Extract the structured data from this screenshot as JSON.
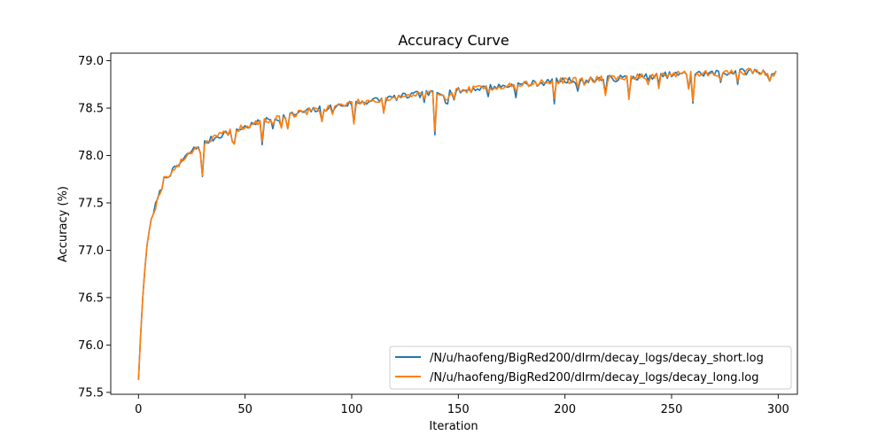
{
  "chart_data": {
    "type": "line",
    "title": "Accuracy Curve",
    "xlabel": "Iteration",
    "ylabel": "Accuracy (%)",
    "xlim": [
      -13,
      309
    ],
    "ylim": [
      75.48,
      79.08
    ],
    "xticks": [
      0,
      50,
      100,
      150,
      200,
      250,
      300
    ],
    "yticks": [
      75.5,
      76.0,
      76.5,
      77.0,
      77.5,
      78.0,
      78.5,
      79.0
    ],
    "ytick_labels": [
      "75.5",
      "76.0",
      "76.5",
      "77.0",
      "77.5",
      "78.0",
      "78.5",
      "79.0"
    ],
    "grid": false,
    "legend_position": "lower-right",
    "colors": {
      "decay_short": "#1f77b4",
      "decay_long": "#ff7f0e"
    },
    "anchors": [
      [
        0,
        75.63
      ],
      [
        1,
        76.1
      ],
      [
        2,
        76.5
      ],
      [
        3,
        76.8
      ],
      [
        4,
        77.05
      ],
      [
        5,
        77.2
      ],
      [
        6,
        77.33
      ],
      [
        7,
        77.4
      ],
      [
        8,
        77.47
      ],
      [
        10,
        77.6
      ],
      [
        12,
        77.75
      ],
      [
        14,
        77.8
      ],
      [
        16,
        77.83
      ],
      [
        20,
        77.93
      ],
      [
        25,
        78.05
      ],
      [
        30,
        78.12
      ],
      [
        35,
        78.18
      ],
      [
        40,
        78.23
      ],
      [
        50,
        78.3
      ],
      [
        60,
        78.37
      ],
      [
        70,
        78.42
      ],
      [
        80,
        78.47
      ],
      [
        90,
        78.51
      ],
      [
        100,
        78.55
      ],
      [
        110,
        78.58
      ],
      [
        120,
        78.61
      ],
      [
        130,
        78.64
      ],
      [
        140,
        78.66
      ],
      [
        150,
        78.68
      ],
      [
        160,
        78.71
      ],
      [
        170,
        78.73
      ],
      [
        180,
        78.75
      ],
      [
        190,
        78.77
      ],
      [
        200,
        78.79
      ],
      [
        210,
        78.8
      ],
      [
        220,
        78.81
      ],
      [
        230,
        78.82
      ],
      [
        240,
        78.84
      ],
      [
        250,
        78.85
      ],
      [
        260,
        78.86
      ],
      [
        270,
        78.87
      ],
      [
        280,
        78.88
      ],
      [
        290,
        78.89
      ],
      [
        299,
        78.86
      ]
    ],
    "dips": [
      [
        29,
        -0.05
      ],
      [
        30,
        -0.36
      ],
      [
        44,
        -0.14
      ],
      [
        45,
        -0.12
      ],
      [
        58,
        -0.22
      ],
      [
        63,
        -0.08
      ],
      [
        67,
        -0.12
      ],
      [
        70,
        -0.14
      ],
      [
        86,
        -0.15
      ],
      [
        91,
        -0.08
      ],
      [
        101,
        -0.22
      ],
      [
        115,
        -0.14
      ],
      [
        134,
        -0.07
      ],
      [
        139,
        -0.45
      ],
      [
        144,
        -0.08
      ],
      [
        145,
        -0.1
      ],
      [
        148,
        -0.08
      ],
      [
        164,
        -0.07
      ],
      [
        177,
        -0.1
      ],
      [
        195,
        -0.2
      ],
      [
        206,
        -0.12
      ],
      [
        209,
        -0.08
      ],
      [
        219,
        -0.16
      ],
      [
        230,
        -0.22
      ],
      [
        239,
        -0.07
      ],
      [
        244,
        -0.12
      ],
      [
        258,
        -0.14
      ],
      [
        260,
        -0.3
      ],
      [
        273,
        -0.1
      ],
      [
        281,
        -0.1
      ],
      [
        296,
        -0.08
      ]
    ],
    "series": [
      {
        "name": "/N/u/haofeng/BigRed200/dlrm/decay_logs/decay_short.log",
        "color": "#1f77b4",
        "noise_seed": 7,
        "noise_amp": 0.035
      },
      {
        "name": "/N/u/haofeng/BigRed200/dlrm/decay_logs/decay_long.log",
        "color": "#ff7f0e",
        "noise_seed": 19,
        "noise_amp": 0.035
      }
    ]
  }
}
